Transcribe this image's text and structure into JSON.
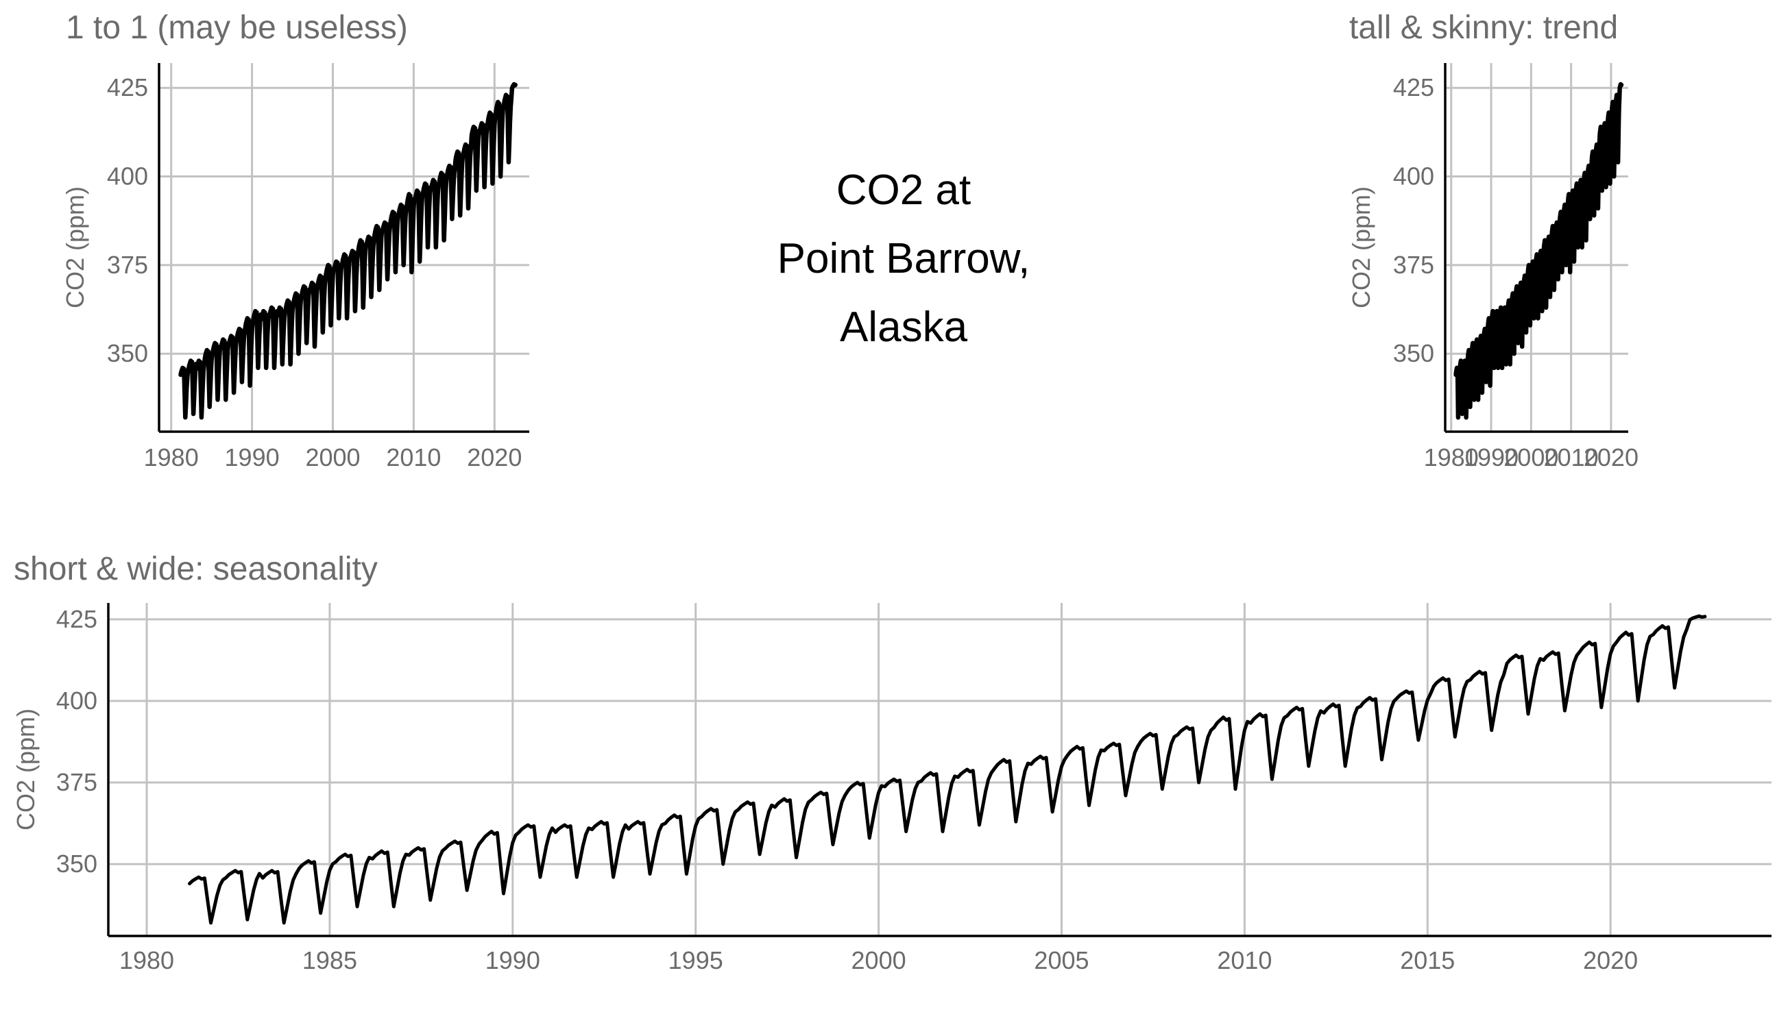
{
  "center_title": [
    "CO2 at",
    "Point Barrow,",
    "Alaska"
  ],
  "colors": {
    "line": "#000000",
    "grid": "#c2c2c2",
    "text": "#6b6b6b"
  },
  "chart_data": [
    {
      "type": "line",
      "title": "1 to 1 (may be useless)",
      "ylabel": "CO2 (ppm)",
      "xlim": [
        1978.5,
        2024.3
      ],
      "ylim": [
        328,
        432
      ],
      "xticks": [
        1980,
        1990,
        2000,
        2010,
        2020
      ],
      "yticks": [
        350,
        375,
        400,
        425
      ],
      "grid": true
    },
    {
      "type": "line",
      "title": "tall & skinny:  trend",
      "ylabel": "CO2 (ppm)",
      "xlim": [
        1978.5,
        2024.3
      ],
      "ylim": [
        328,
        432
      ],
      "xticks": [
        1980,
        1990,
        2000,
        2010,
        2020
      ],
      "yticks": [
        350,
        375,
        400,
        425
      ],
      "grid": true
    },
    {
      "type": "line",
      "title": "short & wide: seasonality",
      "ylabel": "CO2 (ppm)",
      "xlim": [
        1978.95,
        2024.4
      ],
      "ylim": [
        328,
        430
      ],
      "xticks": [
        1980,
        1985,
        1990,
        1995,
        2000,
        2005,
        2010,
        2015,
        2020
      ],
      "yticks": [
        350,
        375,
        400,
        425
      ],
      "grid": true
    }
  ],
  "co2_series": {
    "years": [
      1981,
      1982,
      1983,
      1984,
      1985,
      1986,
      1987,
      1988,
      1989,
      1990,
      1991,
      1992,
      1993,
      1994,
      1995,
      1996,
      1997,
      1998,
      1999,
      2000,
      2001,
      2002,
      2003,
      2004,
      2005,
      2006,
      2007,
      2008,
      2009,
      2010,
      2011,
      2012,
      2013,
      2014,
      2015,
      2016,
      2017,
      2018,
      2019,
      2020,
      2021,
      2022
    ],
    "annual_max_ppm": [
      346,
      348,
      348,
      351,
      353,
      354,
      355,
      357,
      360,
      362,
      362,
      363,
      363,
      365,
      367,
      369,
      370,
      372,
      375,
      376,
      378,
      379,
      382,
      383,
      386,
      387,
      390,
      392,
      395,
      396,
      398,
      399,
      401,
      403,
      407,
      409,
      414,
      415,
      418,
      421,
      423,
      426
    ],
    "annual_min_ppm": [
      332,
      333,
      332,
      335,
      337,
      337,
      339,
      342,
      341,
      346,
      346,
      346,
      347,
      347,
      350,
      353,
      352,
      356,
      358,
      360,
      360,
      362,
      363,
      366,
      368,
      371,
      373,
      375,
      373,
      376,
      380,
      380,
      382,
      388,
      389,
      391,
      396,
      397,
      398,
      400,
      404,
      418
    ]
  }
}
